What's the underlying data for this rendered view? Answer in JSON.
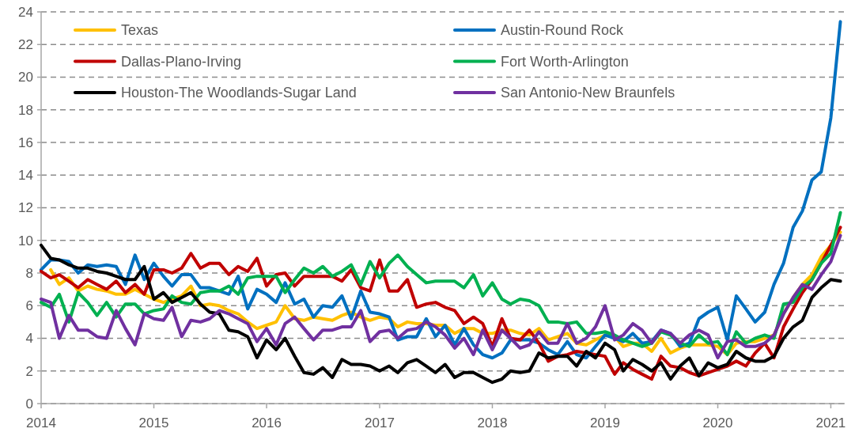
{
  "chart_data": {
    "type": "line",
    "x": [
      "2014-01",
      "2014-02",
      "2014-03",
      "2014-04",
      "2014-05",
      "2014-06",
      "2014-07",
      "2014-08",
      "2014-09",
      "2014-10",
      "2014-11",
      "2014-12",
      "2015-01",
      "2015-02",
      "2015-03",
      "2015-04",
      "2015-05",
      "2015-06",
      "2015-07",
      "2015-08",
      "2015-09",
      "2015-10",
      "2015-11",
      "2015-12",
      "2016-01",
      "2016-02",
      "2016-03",
      "2016-04",
      "2016-05",
      "2016-06",
      "2016-07",
      "2016-08",
      "2016-09",
      "2016-10",
      "2016-11",
      "2016-12",
      "2017-01",
      "2017-02",
      "2017-03",
      "2017-04",
      "2017-05",
      "2017-06",
      "2017-07",
      "2017-08",
      "2017-09",
      "2017-10",
      "2017-11",
      "2017-12",
      "2018-01",
      "2018-02",
      "2018-03",
      "2018-04",
      "2018-05",
      "2018-06",
      "2018-07",
      "2018-08",
      "2018-09",
      "2018-10",
      "2018-11",
      "2018-12",
      "2019-01",
      "2019-02",
      "2019-03",
      "2019-04",
      "2019-05",
      "2019-06",
      "2019-07",
      "2019-08",
      "2019-09",
      "2019-10",
      "2019-11",
      "2019-12",
      "2020-01",
      "2020-02",
      "2020-03",
      "2020-04",
      "2020-05",
      "2020-06",
      "2020-07",
      "2020-08",
      "2020-09",
      "2020-10",
      "2020-11",
      "2020-12",
      "2021-01",
      "2021-02"
    ],
    "series": [
      {
        "name": "Texas",
        "color": "#ffc000",
        "values": [
          null,
          8.2,
          7.3,
          7.7,
          6.9,
          7.2,
          7.0,
          6.9,
          6.7,
          6.7,
          7.0,
          6.7,
          6.4,
          6.2,
          6.4,
          6.6,
          7.2,
          6.0,
          6.1,
          6.0,
          5.7,
          5.5,
          5.0,
          4.6,
          4.8,
          5.0,
          6.0,
          5.2,
          5.1,
          5.3,
          5.2,
          5.1,
          5.4,
          5.6,
          5.3,
          5.1,
          5.3,
          5.2,
          4.7,
          5.0,
          4.9,
          4.9,
          4.8,
          4.8,
          4.3,
          4.6,
          4.6,
          4.3,
          4.3,
          4.5,
          4.5,
          4.3,
          4.2,
          4.6,
          3.9,
          4.1,
          4.3,
          3.7,
          3.6,
          3.9,
          4.2,
          4.1,
          3.5,
          3.7,
          3.7,
          3.2,
          4.0,
          3.1,
          3.4,
          3.6,
          3.6,
          3.6,
          3.5,
          3.0,
          3.7,
          3.8,
          3.8,
          4.0,
          4.2,
          5.5,
          6.5,
          7.3,
          7.9,
          9.0,
          9.7,
          10.5
        ]
      },
      {
        "name": "Austin-Round Rock",
        "color": "#0070c0",
        "values": [
          8.2,
          8.8,
          8.8,
          8.7,
          8.0,
          8.5,
          8.4,
          8.5,
          8.4,
          7.3,
          9.1,
          7.6,
          8.6,
          7.8,
          7.2,
          7.9,
          7.9,
          7.1,
          7.1,
          6.9,
          6.7,
          7.8,
          5.8,
          7.0,
          6.7,
          6.2,
          7.4,
          6.1,
          6.4,
          5.3,
          6.0,
          5.9,
          6.6,
          5.2,
          6.9,
          5.6,
          5.5,
          5.3,
          3.9,
          4.1,
          4.1,
          5.2,
          4.1,
          4.8,
          3.6,
          4.6,
          3.6,
          3.0,
          2.8,
          3.1,
          3.9,
          3.9,
          3.9,
          3.7,
          3.3,
          3.0,
          3.8,
          3.0,
          2.8,
          3.5,
          4.2,
          4.0,
          3.8,
          4.3,
          3.7,
          3.8,
          4.5,
          4.3,
          3.5,
          3.7,
          5.2,
          5.6,
          5.9,
          3.9,
          6.6,
          5.8,
          5.0,
          5.6,
          7.3,
          8.6,
          10.8,
          11.8,
          13.7,
          14.2,
          17.5,
          23.4
        ]
      },
      {
        "name": "Dallas-Plano-Irving",
        "color": "#c00000",
        "values": [
          8.1,
          7.7,
          7.9,
          7.5,
          7.1,
          7.6,
          7.3,
          7.0,
          7.5,
          6.8,
          7.3,
          6.7,
          8.2,
          8.2,
          8.0,
          8.3,
          9.2,
          8.3,
          8.6,
          8.6,
          7.9,
          8.4,
          8.1,
          8.9,
          7.2,
          7.9,
          8.0,
          7.2,
          7.8,
          7.8,
          7.8,
          7.8,
          7.5,
          8.2,
          7.1,
          6.9,
          8.8,
          6.9,
          6.9,
          7.6,
          5.9,
          6.1,
          6.2,
          5.9,
          5.7,
          4.9,
          5.3,
          4.9,
          3.5,
          5.2,
          4.0,
          3.9,
          4.5,
          3.7,
          2.6,
          2.9,
          3.0,
          3.2,
          3.1,
          3.0,
          2.9,
          1.8,
          2.5,
          2.1,
          1.8,
          1.5,
          2.9,
          2.3,
          2.2,
          1.9,
          1.7,
          1.9,
          2.1,
          2.3,
          2.6,
          2.3,
          3.1,
          3.7,
          2.8,
          4.7,
          5.8,
          6.8,
          7.6,
          8.6,
          9.7,
          10.8
        ]
      },
      {
        "name": "Fort Worth-Arlington",
        "color": "#00b050",
        "values": [
          6.2,
          5.9,
          6.7,
          5.0,
          6.8,
          6.2,
          5.4,
          6.2,
          5.3,
          6.1,
          6.1,
          5.5,
          5.7,
          5.8,
          6.6,
          6.2,
          6.1,
          6.8,
          6.9,
          6.9,
          7.2,
          6.7,
          7.7,
          7.8,
          7.8,
          7.8,
          6.8,
          7.6,
          8.3,
          8.0,
          8.4,
          7.8,
          8.1,
          8.5,
          7.3,
          8.7,
          7.7,
          8.6,
          9.1,
          8.4,
          7.9,
          7.4,
          7.5,
          7.5,
          7.5,
          7.1,
          7.9,
          6.6,
          7.4,
          6.4,
          6.1,
          6.4,
          6.3,
          6.0,
          5.0,
          5.0,
          4.9,
          5.0,
          4.3,
          4.3,
          4.4,
          4.2,
          3.9,
          3.7,
          3.5,
          3.7,
          4.4,
          4.2,
          3.7,
          3.5,
          4.2,
          3.7,
          3.8,
          3.0,
          4.4,
          3.7,
          4.0,
          4.2,
          4.0,
          6.1,
          6.2,
          7.1,
          7.6,
          8.6,
          9.2,
          11.7
        ]
      },
      {
        "name": "Houston-The Woodlands-Sugar Land",
        "color": "#000000",
        "values": [
          9.7,
          8.9,
          8.8,
          8.5,
          8.3,
          8.3,
          8.1,
          8.0,
          7.8,
          7.6,
          7.6,
          8.4,
          6.4,
          6.8,
          6.2,
          6.5,
          6.8,
          6.1,
          5.6,
          5.5,
          4.5,
          4.4,
          4.1,
          2.8,
          3.9,
          3.3,
          4.0,
          2.9,
          1.9,
          1.8,
          2.2,
          1.6,
          2.7,
          2.4,
          2.4,
          2.3,
          2.0,
          2.3,
          1.9,
          2.5,
          2.7,
          2.3,
          1.9,
          2.4,
          1.6,
          1.9,
          1.9,
          1.6,
          1.3,
          1.5,
          2.0,
          1.9,
          2.0,
          3.1,
          2.8,
          2.9,
          2.9,
          2.3,
          3.2,
          2.8,
          3.7,
          3.3,
          2.0,
          2.7,
          2.4,
          2.0,
          2.5,
          1.5,
          2.3,
          2.8,
          1.7,
          2.5,
          2.2,
          2.4,
          3.2,
          2.8,
          2.6,
          2.6,
          2.9,
          4.0,
          4.7,
          5.1,
          6.5,
          7.1,
          7.6,
          7.5
        ]
      },
      {
        "name": "San Antonio-New Braunfels",
        "color": "#7030a0",
        "values": [
          6.4,
          6.2,
          4.0,
          5.4,
          4.5,
          4.5,
          4.1,
          4.0,
          5.7,
          4.6,
          3.6,
          5.5,
          5.2,
          5.1,
          5.9,
          4.1,
          5.1,
          5.0,
          5.2,
          5.7,
          5.5,
          5.2,
          4.9,
          3.8,
          4.6,
          3.6,
          4.9,
          5.3,
          4.6,
          3.9,
          4.5,
          4.5,
          4.7,
          4.7,
          5.7,
          3.8,
          4.4,
          4.5,
          4.0,
          4.5,
          4.6,
          5.0,
          4.7,
          4.2,
          3.4,
          4.0,
          3.0,
          4.5,
          3.3,
          4.5,
          4.0,
          3.4,
          3.6,
          4.4,
          3.7,
          3.7,
          4.9,
          3.7,
          4.0,
          4.7,
          6.0,
          3.9,
          4.2,
          4.9,
          4.5,
          3.7,
          4.5,
          4.3,
          3.7,
          4.2,
          4.5,
          4.2,
          2.8,
          3.8,
          3.9,
          3.5,
          3.5,
          3.7,
          4.2,
          5.5,
          6.5,
          7.3,
          7.0,
          7.9,
          8.7,
          10.3
        ]
      }
    ],
    "xlim": [
      "2014-01-01",
      "2021-02-15"
    ],
    "xticks": [
      "2014",
      "2015",
      "2016",
      "2017",
      "2018",
      "2019",
      "2020",
      "2021"
    ],
    "ylim": [
      0,
      24
    ],
    "yticks": [
      0,
      2,
      4,
      6,
      8,
      10,
      12,
      14,
      16,
      18,
      20,
      22,
      24
    ],
    "grid": "y",
    "legend": "top",
    "line_style": "solid"
  }
}
